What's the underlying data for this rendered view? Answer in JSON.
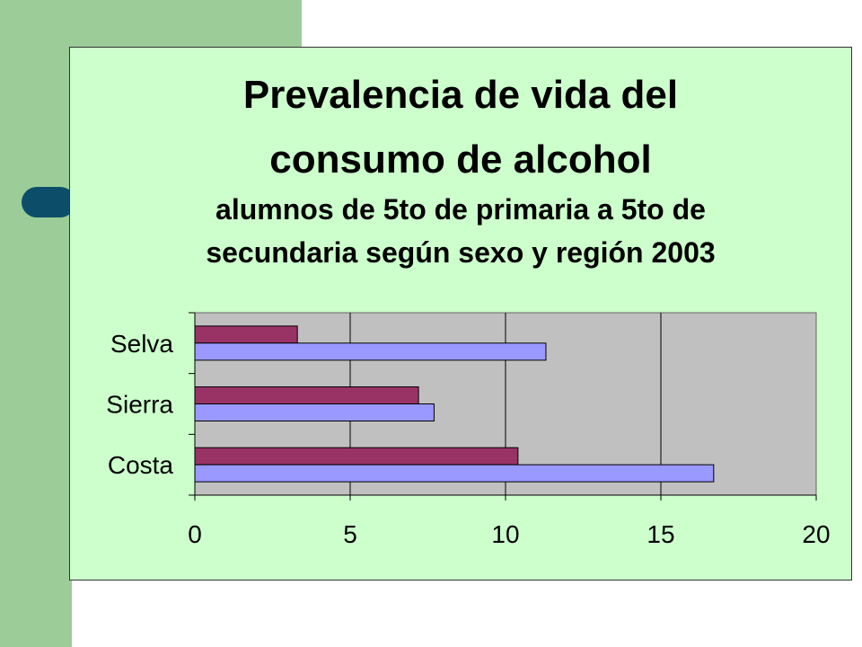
{
  "slide": {
    "title_line1": "Prevalencia de vida del",
    "title_line2": "consumo de alcohol",
    "subtitle_line1": "alumnos de 5to de primaria a 5to de",
    "subtitle_line2": "secundaria según sexo y región 2003"
  },
  "colors": {
    "slide_bg": "#ccffcc",
    "plot_bg": "#c0c0c0",
    "series_1": "#993366",
    "series_2": "#9999ff",
    "accent": "#9ccc98",
    "pill": "#0c4e6a"
  },
  "chart_data": {
    "type": "bar",
    "orientation": "horizontal",
    "categories": [
      "Costa",
      "Sierra",
      "Selva"
    ],
    "series": [
      {
        "values": [
          10.4,
          7.2,
          3.3
        ]
      },
      {
        "values": [
          16.7,
          7.7,
          11.3
        ]
      }
    ],
    "xlim": [
      0,
      20
    ],
    "xticks": [
      0,
      5,
      10,
      15,
      20
    ],
    "grid": true,
    "legend": false
  }
}
